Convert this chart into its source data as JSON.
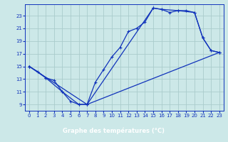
{
  "xlabel": "Graphe des températures (°C)",
  "bg_color": "#cce8e8",
  "grid_color": "#aacccc",
  "line_color": "#1133bb",
  "label_bg": "#2244bb",
  "xlim": [
    -0.5,
    23.5
  ],
  "ylim": [
    8.0,
    24.8
  ],
  "xticks": [
    0,
    1,
    2,
    3,
    4,
    5,
    6,
    7,
    8,
    9,
    10,
    11,
    12,
    13,
    14,
    15,
    16,
    17,
    18,
    19,
    20,
    21,
    22,
    23
  ],
  "yticks": [
    9,
    11,
    13,
    15,
    17,
    19,
    21,
    23
  ],
  "line1_x": [
    0,
    1,
    2,
    3,
    4,
    5,
    6,
    7,
    8,
    9,
    10,
    11,
    12,
    13,
    14,
    15,
    16,
    17,
    18,
    19,
    20,
    21,
    22,
    23
  ],
  "line1_y": [
    15.0,
    14.2,
    13.2,
    12.8,
    11.0,
    9.5,
    9.0,
    9.0,
    12.5,
    14.5,
    16.5,
    18.0,
    20.5,
    21.0,
    22.0,
    24.2,
    24.0,
    23.5,
    23.8,
    23.8,
    23.5,
    19.5,
    17.5,
    17.2
  ],
  "line2_x": [
    0,
    2,
    4,
    6,
    7,
    23
  ],
  "line2_y": [
    15.0,
    13.2,
    11.0,
    9.0,
    9.0,
    17.2
  ],
  "line3_x": [
    0,
    7,
    15,
    16,
    18,
    20,
    21,
    22,
    23
  ],
  "line3_y": [
    15.0,
    9.0,
    24.2,
    24.0,
    23.8,
    23.5,
    19.5,
    17.5,
    17.2
  ],
  "xlabel_fontsize": 6.0,
  "tick_fontsize": 5.0
}
